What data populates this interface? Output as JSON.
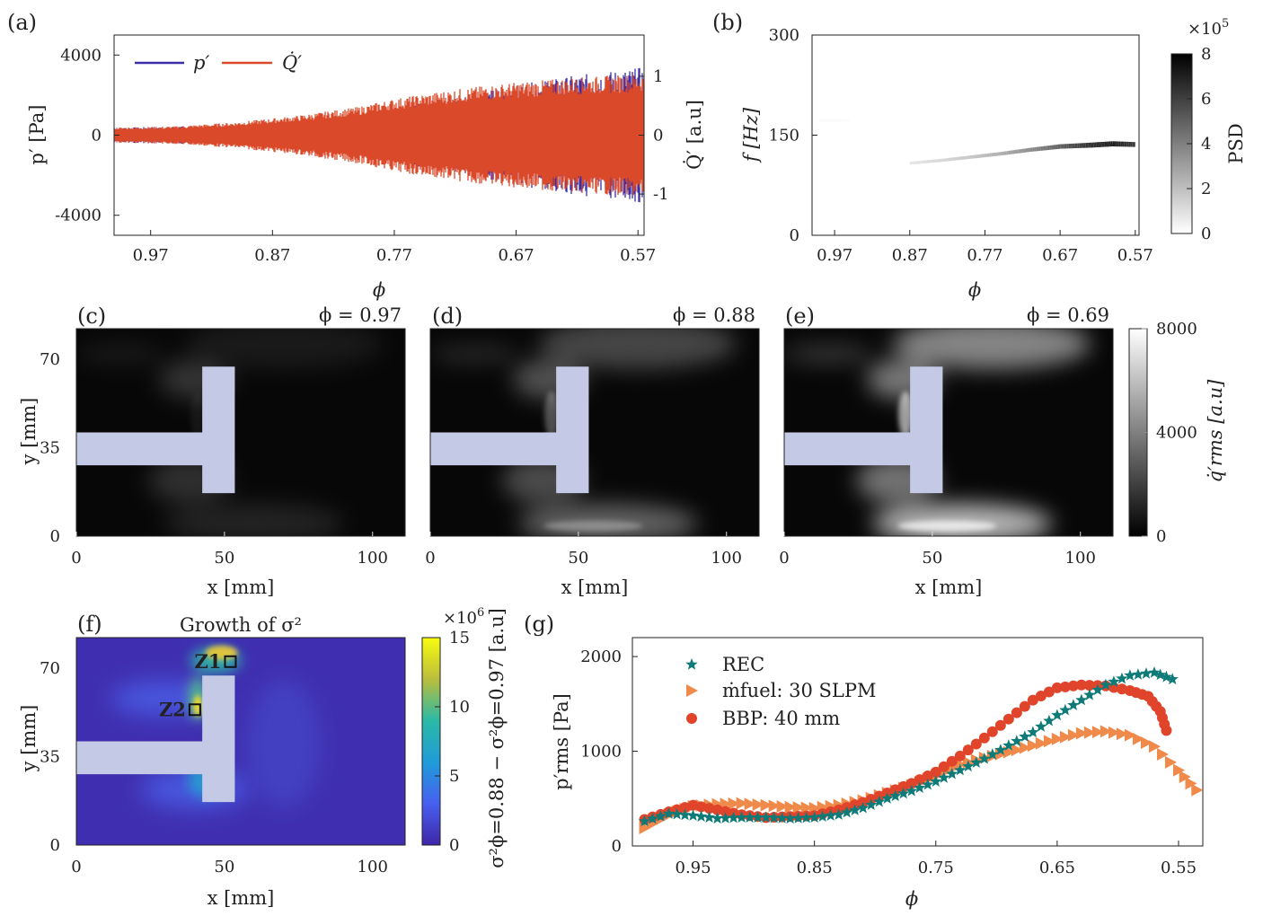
{
  "panel_labels": {
    "a": "(a)",
    "b": "(b)",
    "c": "(c)",
    "d": "(d)",
    "e": "(e)",
    "f": "(f)",
    "g": "(g)"
  },
  "chart_data": [
    {
      "id": "a",
      "type": "line",
      "title": "",
      "xlabel": "ϕ",
      "ylabel": "p′ [Pa]",
      "y2label": "Q̇′ [a.u]",
      "xticks": [
        0.97,
        0.87,
        0.77,
        0.67,
        0.57
      ],
      "xlim": [
        1.0,
        0.565
      ],
      "yticks_labels": [
        "4000",
        "0",
        "-4000"
      ],
      "yticks": [
        4000,
        0,
        -4000
      ],
      "ylim": [
        -5000,
        5000
      ],
      "y2ticks_labels": [
        "1",
        "0",
        "-1"
      ],
      "y2ticks": [
        1,
        0,
        -1
      ],
      "y2lim": [
        -1.7,
        1.7
      ],
      "legend": [
        "p′",
        "Q̇′"
      ],
      "series": [
        {
          "name": "p′",
          "color": "#3b2ea8",
          "envelope_x": [
            1.0,
            0.95,
            0.9,
            0.85,
            0.8,
            0.77,
            0.72,
            0.67,
            0.62,
            0.565
          ],
          "envelope_amp": [
            380,
            420,
            520,
            700,
            1000,
            1350,
            1900,
            2500,
            3000,
            3400
          ]
        },
        {
          "name": "Q̇′",
          "color": "#d9492a",
          "envelope_x": [
            1.0,
            0.95,
            0.9,
            0.85,
            0.8,
            0.77,
            0.72,
            0.67,
            0.62,
            0.565
          ],
          "envelope_amp": [
            0.13,
            0.15,
            0.22,
            0.33,
            0.48,
            0.62,
            0.78,
            0.9,
            0.98,
            1.05
          ]
        }
      ]
    },
    {
      "id": "b",
      "type": "heatmap",
      "title": "",
      "xlabel": "ϕ",
      "ylabel": "f [Hz]",
      "xticks": [
        0.97,
        0.87,
        0.77,
        0.67,
        0.57
      ],
      "xlim": [
        1.0,
        0.565
      ],
      "yticks": [
        0,
        150,
        300
      ],
      "ylim": [
        0,
        300
      ],
      "colorbar_label": "PSD",
      "colorbar_ticks": [
        0,
        2,
        4,
        6,
        8
      ],
      "colorbar_exponent": "×10^5",
      "peak_track": {
        "phi": [
          0.99,
          0.95,
          0.87,
          0.83,
          0.79,
          0.75,
          0.71,
          0.67,
          0.63,
          0.6,
          0.57
        ],
        "freq": [
          172,
          172,
          108,
          112,
          117,
          122,
          128,
          133,
          135,
          137,
          136
        ],
        "psd": [
          0.2,
          0.1,
          0.8,
          1.2,
          1.8,
          2.5,
          3.6,
          5.0,
          6.5,
          7.0,
          6.0
        ]
      }
    },
    {
      "id": "c",
      "type": "heatmap",
      "annotation": "ϕ = 0.97",
      "xlabel": "x [mm]",
      "ylabel": "y [mm]",
      "xticks": [
        0,
        50,
        100
      ],
      "yticks": [
        0,
        35,
        70
      ],
      "xlim": [
        0,
        111
      ],
      "ylim": [
        0,
        82
      ],
      "intensity": 0.22
    },
    {
      "id": "d",
      "type": "heatmap",
      "annotation": "ϕ = 0.88",
      "xlabel": "x [mm]",
      "ylabel": "",
      "xticks": [
        0,
        50,
        100
      ],
      "yticks": [],
      "xlim": [
        0,
        111
      ],
      "ylim": [
        0,
        82
      ],
      "intensity": 0.55
    },
    {
      "id": "e",
      "type": "heatmap",
      "annotation": "ϕ = 0.69",
      "xlabel": "x [mm]",
      "ylabel": "",
      "xticks": [
        0,
        50,
        100
      ],
      "yticks": [],
      "xlim": [
        0,
        111
      ],
      "ylim": [
        0,
        82
      ],
      "intensity": 1.0,
      "colorbar_label": "q̇′rms [a.u]",
      "colorbar_ticks": [
        0,
        4000,
        8000
      ]
    },
    {
      "id": "f",
      "type": "heatmap",
      "title": "Growth of σ²",
      "xlabel": "x [mm]",
      "ylabel": "y [mm]",
      "xticks": [
        0,
        50,
        100
      ],
      "yticks": [
        0,
        35,
        70
      ],
      "xlim": [
        0,
        111
      ],
      "ylim": [
        0,
        82
      ],
      "markers": [
        "Z1",
        "Z2"
      ],
      "colorbar_label": "σ²ϕ=0.88 − σ²ϕ=0.97 [a.u]",
      "colorbar_ticks": [
        0,
        5,
        10,
        15
      ],
      "colorbar_exponent": "×10^6"
    },
    {
      "id": "g",
      "type": "scatter",
      "xlabel": "ϕ",
      "ylabel": "p′rms [Pa]",
      "xticks": [
        0.95,
        0.85,
        0.75,
        0.65,
        0.55
      ],
      "xlim": [
        1.0,
        0.53
      ],
      "yticks": [
        0,
        1000,
        2000
      ],
      "ylim": [
        0,
        2200
      ],
      "series": [
        {
          "name": "REC",
          "marker": "star",
          "color": "#0f7b78",
          "x": [
            0.99,
            0.97,
            0.95,
            0.93,
            0.91,
            0.89,
            0.87,
            0.85,
            0.83,
            0.81,
            0.79,
            0.77,
            0.75,
            0.73,
            0.71,
            0.69,
            0.67,
            0.65,
            0.63,
            0.61,
            0.59,
            0.57,
            0.555
          ],
          "y": [
            260,
            340,
            320,
            290,
            300,
            300,
            290,
            300,
            330,
            400,
            500,
            580,
            680,
            800,
            920,
            1060,
            1200,
            1380,
            1540,
            1700,
            1800,
            1830,
            1760
          ]
        },
        {
          "name": "ṁfuel: 30 SLPM",
          "marker": "triangle-right",
          "color": "#f08a4b",
          "x": [
            0.99,
            0.97,
            0.95,
            0.93,
            0.91,
            0.89,
            0.87,
            0.85,
            0.83,
            0.81,
            0.79,
            0.77,
            0.75,
            0.73,
            0.71,
            0.69,
            0.67,
            0.65,
            0.63,
            0.61,
            0.59,
            0.57,
            0.55,
            0.535
          ],
          "y": [
            190,
            330,
            420,
            440,
            450,
            430,
            410,
            400,
            430,
            480,
            560,
            640,
            740,
            860,
            930,
            990,
            1060,
            1130,
            1190,
            1210,
            1170,
            1050,
            800,
            590
          ]
        },
        {
          "name": "BBP: 40 mm",
          "marker": "circle",
          "color": "#e0452b",
          "x": [
            0.99,
            0.97,
            0.95,
            0.93,
            0.91,
            0.89,
            0.87,
            0.85,
            0.83,
            0.81,
            0.79,
            0.77,
            0.75,
            0.73,
            0.71,
            0.69,
            0.67,
            0.65,
            0.63,
            0.61,
            0.59,
            0.575,
            0.565,
            0.56
          ],
          "y": [
            280,
            360,
            430,
            380,
            330,
            300,
            310,
            320,
            380,
            460,
            560,
            660,
            780,
            950,
            1140,
            1340,
            1540,
            1670,
            1700,
            1690,
            1640,
            1580,
            1420,
            1220
          ]
        }
      ],
      "legend": [
        "REC",
        "ṁfuel: 30 SLPM",
        "BBP: 40 mm"
      ]
    }
  ]
}
